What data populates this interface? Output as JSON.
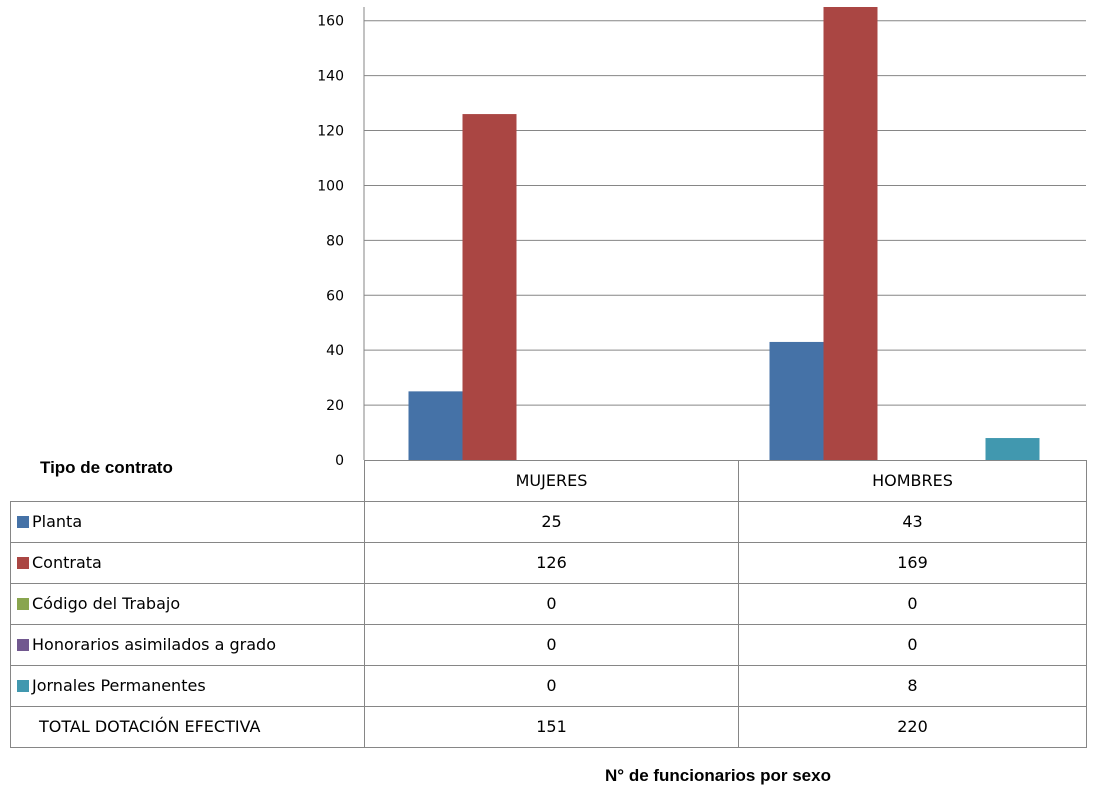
{
  "chart_data": {
    "type": "bar",
    "title": "N° de funcionarios por sexo",
    "legend_title": "Tipo de contrato",
    "categories": [
      "MUJERES",
      "HOMBRES"
    ],
    "series": [
      {
        "name": "Planta",
        "values": [
          25,
          43
        ],
        "color": "#4572A7"
      },
      {
        "name": "Contrata",
        "values": [
          126,
          169
        ],
        "color": "#AA4643"
      },
      {
        "name": "Código del Trabajo",
        "values": [
          0,
          0
        ],
        "color": "#89A54E"
      },
      {
        "name": "Honorarios asimilados a grado",
        "values": [
          0,
          0
        ],
        "color": "#71588F"
      },
      {
        "name": "Jornales Permanentes",
        "values": [
          0,
          8
        ],
        "color": "#4198AF"
      }
    ],
    "total": {
      "label": "TOTAL DOTACIÓN EFECTIVA",
      "values": [
        151,
        220
      ]
    },
    "ylim": [
      0,
      165
    ],
    "yticks": [
      0,
      20,
      40,
      60,
      80,
      100,
      120,
      140,
      160
    ],
    "grid": true,
    "legend": "data-table-below"
  }
}
